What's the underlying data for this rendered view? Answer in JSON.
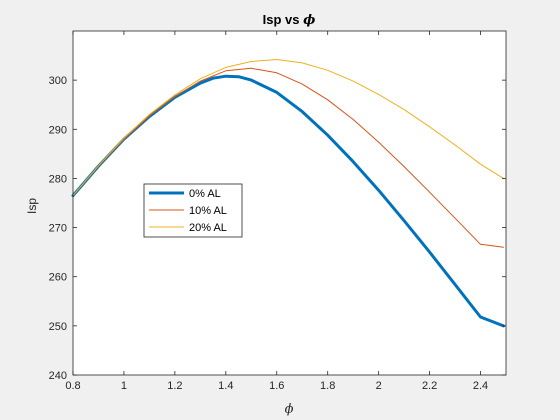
{
  "chart_data": {
    "type": "line",
    "title_main": "Isp vs ",
    "title_symbol": "ϕ",
    "xlabel": "ϕ",
    "ylabel": "Isp",
    "xlim": [
      0.8,
      2.5
    ],
    "ylim": [
      240,
      310
    ],
    "xticks": [
      0.8,
      1,
      1.2,
      1.4,
      1.6,
      1.8,
      2,
      2.2,
      2.4
    ],
    "xtick_labels": [
      "0.8",
      "1",
      "1.2",
      "1.4",
      "1.6",
      "1.8",
      "2",
      "2.2",
      "2.4"
    ],
    "yticks": [
      240,
      250,
      260,
      270,
      280,
      290,
      300
    ],
    "ytick_labels": [
      "240",
      "250",
      "260",
      "270",
      "280",
      "290",
      "300"
    ],
    "grid": false,
    "legend_position": "center-left",
    "series": [
      {
        "name": "0% AL",
        "color": "#0072BD",
        "width": 3,
        "x": [
          0.8,
          0.9,
          1.0,
          1.1,
          1.2,
          1.3,
          1.35,
          1.4,
          1.45,
          1.5,
          1.6,
          1.7,
          1.8,
          1.9,
          2.0,
          2.1,
          2.2,
          2.3,
          2.4,
          2.49
        ],
        "y": [
          276.5,
          282.5,
          288.0,
          292.6,
          296.5,
          299.4,
          300.4,
          300.8,
          300.7,
          300.0,
          297.5,
          293.6,
          288.8,
          283.4,
          277.6,
          271.4,
          265.0,
          258.4,
          251.8,
          250.0
        ]
      },
      {
        "name": "10% AL",
        "color": "#D95319",
        "width": 1,
        "x": [
          0.8,
          0.9,
          1.0,
          1.1,
          1.2,
          1.3,
          1.4,
          1.5,
          1.6,
          1.7,
          1.8,
          1.9,
          2.0,
          2.1,
          2.2,
          2.3,
          2.4,
          2.49
        ],
        "y": [
          276.5,
          282.5,
          288.0,
          292.7,
          296.7,
          299.8,
          301.9,
          302.4,
          301.5,
          299.2,
          296.0,
          292.0,
          287.4,
          282.4,
          277.2,
          271.9,
          266.6,
          266.0
        ]
      },
      {
        "name": "20% AL",
        "color": "#EDB120",
        "width": 1,
        "x": [
          0.8,
          0.9,
          1.0,
          1.1,
          1.2,
          1.3,
          1.4,
          1.5,
          1.6,
          1.7,
          1.8,
          1.9,
          2.0,
          2.1,
          2.2,
          2.3,
          2.4,
          2.49
        ],
        "y": [
          276.5,
          282.6,
          288.2,
          293.0,
          297.0,
          300.3,
          302.6,
          303.8,
          304.2,
          303.5,
          302.0,
          299.8,
          297.1,
          294.0,
          290.5,
          286.8,
          282.9,
          280.0
        ]
      }
    ]
  }
}
